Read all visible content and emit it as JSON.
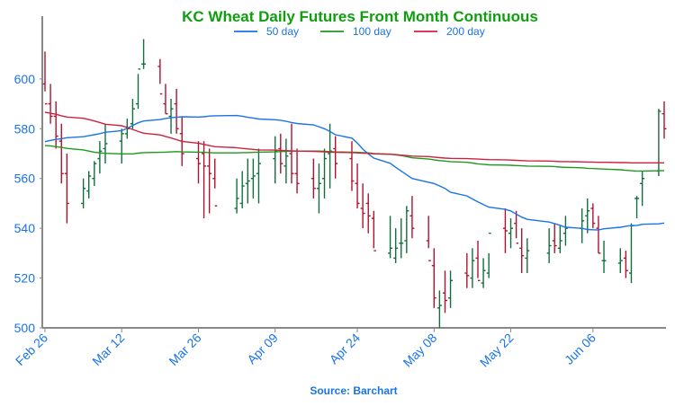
{
  "colors": {
    "title": "#0e9e0e",
    "axis_text": "#1a73e8",
    "source": "#1a73e8",
    "axis_line": "#888888",
    "up_bar": "#116e3d",
    "down_bar": "#b0122e",
    "ma50": "#1a73e8",
    "ma100": "#1e9a1e",
    "ma200": "#d0203f"
  },
  "chart_data": {
    "type": "ohlc",
    "title": "KC Wheat Daily Futures Front Month Continuous",
    "source": "Source: Barchart",
    "xlabel": "",
    "ylabel": "",
    "ylim": [
      500,
      618
    ],
    "yticks": [
      500,
      520,
      540,
      560,
      580,
      600
    ],
    "grid": false,
    "legend_position": "top-center",
    "start_date": "2018-02-26",
    "xtick_labels": [
      "Feb 26",
      "Mar 12",
      "Mar 26",
      "Apr 09",
      "Apr 24",
      "May 08",
      "May 22",
      "Jun 06"
    ],
    "xtick_dates": [
      "2018-02-26",
      "2018-03-12",
      "2018-03-26",
      "2018-04-09",
      "2018-04-24",
      "2018-05-08",
      "2018-05-22",
      "2018-06-06"
    ],
    "ohlc": {
      "dates": [
        "2018-02-26",
        "2018-02-27",
        "2018-02-28",
        "2018-03-01",
        "2018-03-02",
        "2018-03-05",
        "2018-03-06",
        "2018-03-07",
        "2018-03-08",
        "2018-03-09",
        "2018-03-12",
        "2018-03-13",
        "2018-03-14",
        "2018-03-15",
        "2018-03-16",
        "2018-03-19",
        "2018-03-20",
        "2018-03-21",
        "2018-03-22",
        "2018-03-23",
        "2018-03-26",
        "2018-03-27",
        "2018-03-28",
        "2018-03-29",
        "2018-04-02",
        "2018-04-03",
        "2018-04-04",
        "2018-04-05",
        "2018-04-06",
        "2018-04-09",
        "2018-04-10",
        "2018-04-11",
        "2018-04-12",
        "2018-04-13",
        "2018-04-16",
        "2018-04-17",
        "2018-04-18",
        "2018-04-19",
        "2018-04-20",
        "2018-04-23",
        "2018-04-24",
        "2018-04-25",
        "2018-04-26",
        "2018-04-27",
        "2018-04-30",
        "2018-05-01",
        "2018-05-02",
        "2018-05-03",
        "2018-05-04",
        "2018-05-07",
        "2018-05-08",
        "2018-05-09",
        "2018-05-10",
        "2018-05-11",
        "2018-05-14",
        "2018-05-15",
        "2018-05-16",
        "2018-05-17",
        "2018-05-18",
        "2018-05-21",
        "2018-05-22",
        "2018-05-23",
        "2018-05-24",
        "2018-05-25",
        "2018-05-29",
        "2018-05-30",
        "2018-05-31",
        "2018-06-01",
        "2018-06-04",
        "2018-06-05",
        "2018-06-06",
        "2018-06-07",
        "2018-06-08",
        "2018-06-11",
        "2018-06-12",
        "2018-06-13",
        "2018-06-14",
        "2018-06-15",
        "2018-06-18",
        "2018-06-19"
      ],
      "open": [
        598,
        590,
        585,
        575,
        562,
        550,
        555,
        560,
        568,
        572,
        575,
        578,
        582,
        590,
        606,
        605,
        590,
        585,
        590,
        578,
        568,
        570,
        565,
        560,
        548,
        550,
        558,
        560,
        562,
        568,
        572,
        565,
        570,
        562,
        560,
        556,
        560,
        570,
        572,
        568,
        558,
        548,
        550,
        544,
        530,
        528,
        534,
        535,
        545,
        535,
        525,
        508,
        514,
        512,
        522,
        520,
        528,
        518,
        522,
        540,
        538,
        542,
        532,
        528,
        530,
        535,
        532,
        538,
        540,
        545,
        548,
        540,
        527,
        526,
        528,
        522,
        552,
        558,
        563,
        586
      ],
      "high": [
        611,
        598,
        591,
        582,
        570,
        560,
        563,
        567,
        575,
        582,
        580,
        584,
        592,
        602,
        616,
        608,
        598,
        592,
        596,
        585,
        575,
        575,
        572,
        568,
        560,
        563,
        568,
        568,
        572,
        577,
        578,
        576,
        582,
        572,
        568,
        566,
        572,
        582,
        577,
        575,
        566,
        558,
        554,
        547,
        545,
        540,
        544,
        549,
        553,
        545,
        532,
        515,
        523,
        523,
        530,
        532,
        535,
        528,
        530,
        548,
        544,
        547,
        540,
        536,
        540,
        542,
        541,
        545,
        548,
        552,
        550,
        545,
        535,
        532,
        531,
        542,
        553,
        563,
        588,
        591
      ],
      "low": [
        595,
        582,
        572,
        558,
        542,
        548,
        552,
        557,
        562,
        566,
        566,
        576,
        580,
        588,
        604,
        598,
        586,
        578,
        578,
        565,
        558,
        544,
        546,
        556,
        546,
        548,
        550,
        552,
        550,
        558,
        562,
        558,
        558,
        554,
        552,
        546,
        552,
        556,
        560,
        555,
        548,
        540,
        538,
        532,
        528,
        526,
        528,
        530,
        536,
        532,
        508,
        500,
        506,
        508,
        516,
        516,
        520,
        516,
        520,
        530,
        532,
        536,
        522,
        522,
        526,
        530,
        530,
        533,
        534,
        538,
        540,
        530,
        522,
        522,
        520,
        518,
        544,
        549,
        561,
        576
      ],
      "close": [
        590,
        585,
        577,
        562,
        550,
        556,
        561,
        566,
        571,
        574,
        578,
        580,
        588,
        604,
        606,
        594,
        586,
        588,
        580,
        570,
        566,
        565,
        562,
        549,
        552,
        557,
        559,
        561,
        566,
        571,
        566,
        569,
        562,
        558,
        556,
        558,
        568,
        571,
        566,
        559,
        550,
        546,
        545,
        531,
        532,
        532,
        534,
        547,
        540,
        527,
        512,
        509,
        511,
        519,
        521,
        527,
        519,
        523,
        538,
        539,
        540,
        534,
        529,
        531,
        533,
        533,
        535,
        540,
        543,
        547,
        542,
        530,
        527,
        527,
        523,
        541,
        552,
        560,
        587,
        580
      ]
    },
    "series": [
      {
        "name": "50 day",
        "values": [
          574.8,
          575.3,
          575.7,
          576.0,
          576.4,
          576.8,
          577.2,
          577.6,
          578.0,
          578.6,
          579.2,
          580.2,
          581.3,
          582.4,
          583.1,
          583.7,
          584.1,
          584.4,
          584.6,
          584.8,
          584.7,
          584.8,
          585.1,
          585.2,
          585.3,
          585.0,
          584.6,
          584.3,
          583.9,
          583.6,
          583.4,
          583.0,
          582.5,
          582.1,
          581.5,
          580.8,
          580.0,
          578.9,
          577.6,
          576.2,
          574.3,
          571.8,
          569.9,
          568.2,
          566.1,
          564.5,
          563.0,
          561.5,
          560.0,
          558.5,
          558.0,
          557.0,
          556.0,
          554.5,
          553.0,
          551.8,
          550.6,
          549.5,
          548.5,
          547.6,
          547.0,
          545.7,
          544.5,
          543.6,
          542.5,
          541.9,
          541.2,
          540.4,
          540.0,
          539.5,
          539.4,
          539.3,
          539.8,
          540.4,
          540.8,
          541.1,
          541.1,
          541.6,
          541.8,
          542.1
        ]
      },
      {
        "name": "100 day",
        "values": [
          573.3,
          573.1,
          572.8,
          572.5,
          572.1,
          571.5,
          571.0,
          570.6,
          570.3,
          570.1,
          569.9,
          569.9,
          569.9,
          570.2,
          570.4,
          570.5,
          570.6,
          570.7,
          570.8,
          570.7,
          570.6,
          570.5,
          570.4,
          570.3,
          570.3,
          570.4,
          570.4,
          570.5,
          570.6,
          570.7,
          570.8,
          570.9,
          571.0,
          571.0,
          571.0,
          571.0,
          570.9,
          570.8,
          570.7,
          570.6,
          570.5,
          570.4,
          570.3,
          570.0,
          569.8,
          569.5,
          569.2,
          568.8,
          568.3,
          567.8,
          567.5,
          567.2,
          567.0,
          566.8,
          566.5,
          566.2,
          565.9,
          565.7,
          565.5,
          565.4,
          565.3,
          565.2,
          565.1,
          565.0,
          564.9,
          564.8,
          564.6,
          564.5,
          564.3,
          564.1,
          564.0,
          563.9,
          563.8,
          563.5,
          563.3,
          563.1,
          563.0,
          563.0,
          563.1,
          563.2
        ]
      },
      {
        "name": "200 day",
        "values": [
          586.6,
          586.2,
          585.8,
          585.2,
          584.7,
          584.2,
          583.7,
          583.1,
          582.5,
          581.8,
          581.2,
          580.5,
          579.7,
          578.9,
          578.2,
          577.5,
          576.9,
          576.3,
          575.6,
          574.9,
          574.2,
          573.7,
          573.2,
          572.8,
          572.4,
          572.1,
          571.9,
          571.7,
          571.5,
          571.4,
          571.3,
          571.2,
          571.1,
          571.0,
          570.9,
          570.8,
          570.7,
          570.6,
          570.5,
          570.4,
          570.3,
          570.2,
          570.1,
          569.9,
          569.7,
          569.6,
          569.4,
          569.2,
          569.0,
          568.8,
          568.6,
          568.4,
          568.2,
          568.1,
          568.0,
          567.9,
          567.8,
          567.7,
          567.6,
          567.5,
          567.4,
          567.3,
          567.2,
          567.1,
          567.0,
          566.9,
          566.8,
          566.8,
          566.7,
          566.6,
          566.6,
          566.5,
          566.5,
          566.4,
          566.4,
          566.3,
          566.3,
          566.3,
          566.3,
          566.3
        ]
      }
    ]
  }
}
